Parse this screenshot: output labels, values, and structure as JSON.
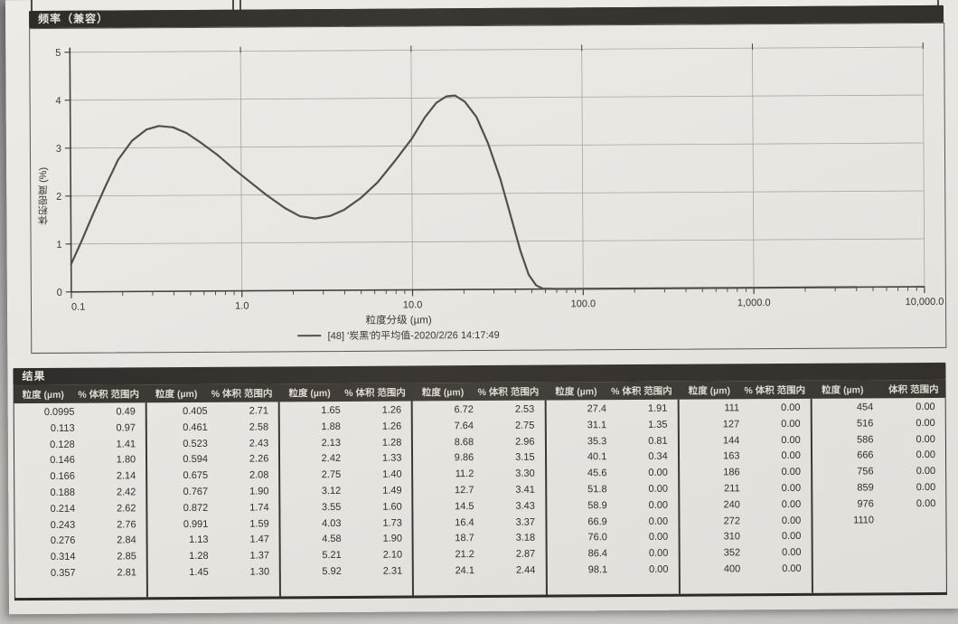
{
  "page": {
    "chart_section_title": "频率（兼容）",
    "results_section_title": "结果"
  },
  "colors": {
    "paper": "#e9e7e2",
    "section_bar_bg": "#34312d",
    "curve": "#53504b",
    "grid": "#aaa69e",
    "axis": "#45423e"
  },
  "chart_data": {
    "type": "line",
    "title": "频率（兼容）",
    "xlabel": "粒度分级 (µm)",
    "ylabel": "体积密度 (%)",
    "x_scale": "log",
    "xlim": [
      0.1,
      10000
    ],
    "ylim": [
      0,
      5
    ],
    "x_ticks": [
      "0.1",
      "1.0",
      "10.0",
      "100.0",
      "1,000.0",
      "10,000.0"
    ],
    "y_ticks": [
      0,
      1,
      2,
      3,
      4,
      5
    ],
    "grid": true,
    "legend_position": "bottom",
    "series": [
      {
        "name": "[48] '炭黑'的平均值-2020/2/26 14:17:49",
        "color": "#53504b",
        "points": [
          [
            0.1,
            0.58
          ],
          [
            0.115,
            1.05
          ],
          [
            0.135,
            1.62
          ],
          [
            0.16,
            2.2
          ],
          [
            0.19,
            2.75
          ],
          [
            0.23,
            3.15
          ],
          [
            0.28,
            3.38
          ],
          [
            0.33,
            3.45
          ],
          [
            0.4,
            3.42
          ],
          [
            0.48,
            3.3
          ],
          [
            0.58,
            3.1
          ],
          [
            0.72,
            2.85
          ],
          [
            0.9,
            2.55
          ],
          [
            1.1,
            2.3
          ],
          [
            1.4,
            2.0
          ],
          [
            1.8,
            1.72
          ],
          [
            2.2,
            1.55
          ],
          [
            2.7,
            1.5
          ],
          [
            3.3,
            1.55
          ],
          [
            4.0,
            1.68
          ],
          [
            5.0,
            1.92
          ],
          [
            6.3,
            2.25
          ],
          [
            8.0,
            2.7
          ],
          [
            10,
            3.15
          ],
          [
            12,
            3.6
          ],
          [
            14,
            3.9
          ],
          [
            16,
            4.03
          ],
          [
            18,
            4.05
          ],
          [
            20.5,
            3.92
          ],
          [
            24,
            3.6
          ],
          [
            28,
            3.05
          ],
          [
            33,
            2.3
          ],
          [
            38,
            1.5
          ],
          [
            43,
            0.8
          ],
          [
            48,
            0.3
          ],
          [
            53,
            0.08
          ],
          [
            58,
            0.01
          ],
          [
            70,
            0
          ],
          [
            200,
            0
          ],
          [
            1000,
            0
          ],
          [
            4000,
            0
          ]
        ]
      }
    ]
  },
  "table": {
    "title": "结果",
    "group_headers": [
      [
        "粒度 (µm)",
        "% 体积 范围内"
      ],
      [
        "粒度 (µm)",
        "% 体积 范围内"
      ],
      [
        "粒度 (µm)",
        "% 体积 范围内"
      ],
      [
        "粒度 (µm)",
        "% 体积 范围内"
      ],
      [
        "粒度 (µm)",
        "% 体积 范围内"
      ],
      [
        "粒度 (µm)",
        "% 体积 范围内"
      ],
      [
        "粒度 (µm)",
        "体积 范围内"
      ]
    ],
    "groups": [
      {
        "rows": [
          [
            "0.0995",
            "0.49"
          ],
          [
            "0.113",
            "0.97"
          ],
          [
            "0.128",
            "1.41"
          ],
          [
            "0.146",
            "1.80"
          ],
          [
            "0.166",
            "2.14"
          ],
          [
            "0.188",
            "2.42"
          ],
          [
            "0.214",
            "2.62"
          ],
          [
            "0.243",
            "2.76"
          ],
          [
            "0.276",
            "2.84"
          ],
          [
            "0.314",
            "2.85"
          ],
          [
            "0.357",
            "2.81"
          ]
        ]
      },
      {
        "rows": [
          [
            "0.405",
            "2.71"
          ],
          [
            "0.461",
            "2.58"
          ],
          [
            "0.523",
            "2.43"
          ],
          [
            "0.594",
            "2.26"
          ],
          [
            "0.675",
            "2.08"
          ],
          [
            "0.767",
            "1.90"
          ],
          [
            "0.872",
            "1.74"
          ],
          [
            "0.991",
            "1.59"
          ],
          [
            "1.13",
            "1.47"
          ],
          [
            "1.28",
            "1.37"
          ],
          [
            "1.45",
            "1.30"
          ]
        ]
      },
      {
        "rows": [
          [
            "1.65",
            "1.26"
          ],
          [
            "1.88",
            "1.26"
          ],
          [
            "2.13",
            "1.28"
          ],
          [
            "2.42",
            "1.33"
          ],
          [
            "2.75",
            "1.40"
          ],
          [
            "3.12",
            "1.49"
          ],
          [
            "3.55",
            "1.60"
          ],
          [
            "4.03",
            "1.73"
          ],
          [
            "4.58",
            "1.90"
          ],
          [
            "5.21",
            "2.10"
          ],
          [
            "5.92",
            "2.31"
          ]
        ]
      },
      {
        "rows": [
          [
            "6.72",
            "2.53"
          ],
          [
            "7.64",
            "2.75"
          ],
          [
            "8.68",
            "2.96"
          ],
          [
            "9.86",
            "3.15"
          ],
          [
            "11.2",
            "3.30"
          ],
          [
            "12.7",
            "3.41"
          ],
          [
            "14.5",
            "3.43"
          ],
          [
            "16.4",
            "3.37"
          ],
          [
            "18.7",
            "3.18"
          ],
          [
            "21.2",
            "2.87"
          ],
          [
            "24.1",
            "2.44"
          ]
        ]
      },
      {
        "rows": [
          [
            "27.4",
            "1.91"
          ],
          [
            "31.1",
            "1.35"
          ],
          [
            "35.3",
            "0.81"
          ],
          [
            "40.1",
            "0.34"
          ],
          [
            "45.6",
            "0.00"
          ],
          [
            "51.8",
            "0.00"
          ],
          [
            "58.9",
            "0.00"
          ],
          [
            "66.9",
            "0.00"
          ],
          [
            "76.0",
            "0.00"
          ],
          [
            "86.4",
            "0.00"
          ],
          [
            "98.1",
            "0.00"
          ]
        ]
      },
      {
        "rows": [
          [
            "111",
            "0.00"
          ],
          [
            "127",
            "0.00"
          ],
          [
            "144",
            "0.00"
          ],
          [
            "163",
            "0.00"
          ],
          [
            "186",
            "0.00"
          ],
          [
            "211",
            "0.00"
          ],
          [
            "240",
            "0.00"
          ],
          [
            "272",
            "0.00"
          ],
          [
            "310",
            "0.00"
          ],
          [
            "352",
            "0.00"
          ],
          [
            "400",
            "0.00"
          ]
        ]
      },
      {
        "rows": [
          [
            "454",
            "0.00"
          ],
          [
            "516",
            "0.00"
          ],
          [
            "586",
            "0.00"
          ],
          [
            "666",
            "0.00"
          ],
          [
            "756",
            "0.00"
          ],
          [
            "859",
            "0.00"
          ],
          [
            "976",
            "0.00"
          ],
          [
            "1110",
            ""
          ]
        ]
      }
    ]
  }
}
